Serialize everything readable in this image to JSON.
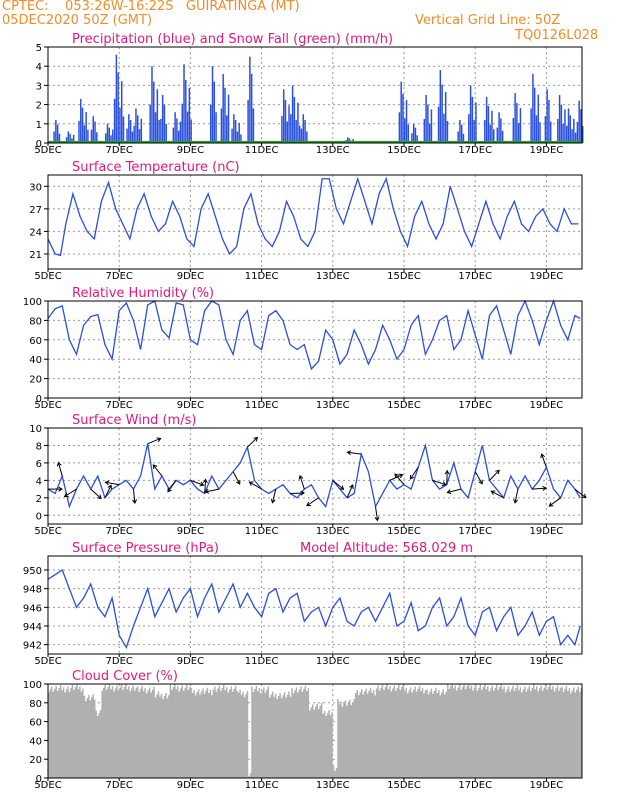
{
  "header": {
    "line1": "CPTEC:    053:26W-16:22S   GUIRATINGA (MT)",
    "line2_left": "05DEC2020 50Z (GMT)",
    "line2_right": "Vertical Grid Line: 50Z",
    "line3_right": "TQ0126L028"
  },
  "x_labels": [
    "5DEC",
    "7DEC",
    "9DEC",
    "11DEC",
    "13DEC",
    "15DEC",
    "17DEC",
    "19DEC"
  ],
  "colors": {
    "line": "#2a4fe0",
    "snow": "#18a818",
    "cloud": "#b0b0b0",
    "title": "#e0197d",
    "header": "#f28c28"
  },
  "chart_data": [
    {
      "type": "bar",
      "title": "Precipitation (blue) and Snow Fall (green) (mm/h)",
      "ylim": [
        0,
        5
      ],
      "yticks": [
        0,
        1,
        2,
        3,
        4,
        5
      ],
      "x_start_day": 5,
      "precip_events": [
        [
          5.15,
          1.2
        ],
        [
          5.5,
          0.6
        ],
        [
          5.85,
          2.3
        ],
        [
          6.2,
          1.4
        ],
        [
          6.6,
          1.0
        ],
        [
          6.85,
          4.6
        ],
        [
          7.2,
          1.5
        ],
        [
          7.4,
          1.8
        ],
        [
          7.85,
          4.0
        ],
        [
          8.15,
          2.5
        ],
        [
          8.5,
          1.6
        ],
        [
          8.75,
          4.1
        ],
        [
          9.55,
          4.0
        ],
        [
          9.85,
          3.6
        ],
        [
          10.15,
          1.5
        ],
        [
          10.6,
          4.5
        ],
        [
          11.55,
          2.8
        ],
        [
          11.8,
          3.0
        ],
        [
          12.1,
          1.5
        ],
        [
          13.35,
          0.3
        ],
        [
          14.85,
          3.2
        ],
        [
          15.2,
          1.0
        ],
        [
          15.55,
          2.5
        ],
        [
          15.95,
          3.8
        ],
        [
          16.5,
          1.2
        ],
        [
          16.8,
          3.0
        ],
        [
          17.25,
          2.4
        ],
        [
          17.6,
          1.6
        ],
        [
          18.05,
          2.6
        ],
        [
          18.55,
          3.6
        ],
        [
          18.95,
          2.8
        ],
        [
          19.3,
          2.5
        ],
        [
          19.55,
          1.8
        ],
        [
          19.85,
          2.2
        ]
      ],
      "snow": 0
    },
    {
      "type": "line",
      "title": "Surface Temperature (nC)",
      "ylim": [
        19,
        31.5
      ],
      "yticks": [
        21,
        24,
        27,
        30
      ],
      "x": [
        5.0,
        5.2,
        5.35,
        5.5,
        5.7,
        5.9,
        6.1,
        6.3,
        6.5,
        6.7,
        6.9,
        7.1,
        7.3,
        7.5,
        7.7,
        7.9,
        8.1,
        8.3,
        8.5,
        8.7,
        8.9,
        9.1,
        9.3,
        9.5,
        9.7,
        9.9,
        10.1,
        10.3,
        10.5,
        10.7,
        10.9,
        11.1,
        11.3,
        11.5,
        11.7,
        11.9,
        12.1,
        12.3,
        12.5,
        12.7,
        12.9,
        13.1,
        13.3,
        13.5,
        13.7,
        13.9,
        14.1,
        14.3,
        14.5,
        14.7,
        14.9,
        15.1,
        15.3,
        15.5,
        15.7,
        15.9,
        16.1,
        16.3,
        16.5,
        16.7,
        16.9,
        17.1,
        17.3,
        17.5,
        17.7,
        17.9,
        18.1,
        18.3,
        18.5,
        18.7,
        18.9,
        19.1,
        19.3,
        19.5,
        19.7,
        19.9
      ],
      "values": [
        23,
        21,
        20.8,
        25,
        29,
        26,
        24,
        23,
        28,
        30.5,
        27,
        25,
        23,
        27,
        29,
        26,
        24,
        25,
        28,
        26,
        23,
        22,
        27,
        29,
        26,
        23,
        21,
        22,
        27,
        29,
        25,
        23,
        22,
        24,
        28,
        26,
        23,
        22,
        24,
        31,
        31,
        27,
        25,
        28,
        31,
        28,
        25,
        29,
        31,
        27,
        24,
        22,
        26,
        28,
        25,
        23,
        25,
        30,
        27,
        24,
        22,
        25,
        28,
        25,
        23,
        26,
        28,
        25,
        24,
        26,
        27,
        25,
        24,
        27,
        25,
        25
      ]
    },
    {
      "type": "line",
      "title": "Relative Humidity (%)",
      "ylim": [
        0,
        100
      ],
      "yticks": [
        0,
        20,
        40,
        60,
        80,
        100
      ],
      "x": [
        5.0,
        5.2,
        5.4,
        5.6,
        5.8,
        6.0,
        6.2,
        6.4,
        6.6,
        6.8,
        7.0,
        7.2,
        7.4,
        7.6,
        7.8,
        8.0,
        8.2,
        8.4,
        8.6,
        8.8,
        9.0,
        9.2,
        9.4,
        9.6,
        9.8,
        10.0,
        10.2,
        10.4,
        10.6,
        10.8,
        11.0,
        11.2,
        11.4,
        11.6,
        11.8,
        12.0,
        12.2,
        12.4,
        12.6,
        12.8,
        13.0,
        13.2,
        13.4,
        13.6,
        13.8,
        14.0,
        14.2,
        14.4,
        14.6,
        14.8,
        15.0,
        15.2,
        15.4,
        15.6,
        15.8,
        16.0,
        16.2,
        16.4,
        16.6,
        16.8,
        17.0,
        17.2,
        17.4,
        17.6,
        17.8,
        18.0,
        18.2,
        18.4,
        18.6,
        18.8,
        19.0,
        19.2,
        19.4,
        19.6,
        19.8,
        19.95
      ],
      "values": [
        82,
        92,
        95,
        60,
        45,
        75,
        84,
        86,
        55,
        40,
        90,
        98,
        80,
        50,
        96,
        100,
        70,
        62,
        98,
        96,
        60,
        55,
        90,
        100,
        96,
        60,
        45,
        80,
        90,
        55,
        50,
        85,
        90,
        80,
        55,
        50,
        55,
        30,
        38,
        70,
        60,
        35,
        45,
        70,
        55,
        35,
        50,
        75,
        60,
        40,
        50,
        75,
        85,
        45,
        60,
        80,
        85,
        50,
        60,
        90,
        65,
        40,
        85,
        95,
        70,
        45,
        85,
        100,
        80,
        55,
        80,
        100,
        75,
        60,
        85,
        82
      ]
    },
    {
      "type": "line",
      "title": "Surface Wind (m/s)",
      "ylim": [
        -1,
        10
      ],
      "yticks": [
        0,
        2,
        4,
        6,
        8,
        10
      ],
      "x": [
        5.0,
        5.2,
        5.4,
        5.6,
        5.8,
        6.0,
        6.2,
        6.4,
        6.6,
        6.8,
        7.0,
        7.2,
        7.4,
        7.6,
        7.8,
        8.0,
        8.2,
        8.4,
        8.6,
        8.8,
        9.0,
        9.2,
        9.4,
        9.6,
        9.8,
        10.0,
        10.2,
        10.4,
        10.6,
        10.8,
        11.0,
        11.2,
        11.4,
        11.6,
        11.8,
        12.0,
        12.2,
        12.4,
        12.6,
        12.8,
        13.0,
        13.2,
        13.4,
        13.6,
        13.8,
        14.0,
        14.2,
        14.4,
        14.6,
        14.8,
        15.0,
        15.2,
        15.4,
        15.6,
        15.8,
        16.0,
        16.2,
        16.4,
        16.6,
        16.8,
        17.0,
        17.2,
        17.4,
        17.6,
        17.8,
        18.0,
        18.2,
        18.4,
        18.6,
        18.8,
        19.0,
        19.2,
        19.4,
        19.6,
        19.8,
        19.95
      ],
      "values": [
        3,
        2.5,
        4.5,
        1,
        3,
        4.5,
        3,
        4.5,
        2,
        3,
        3.5,
        4,
        3,
        4.5,
        8.2,
        3,
        4.5,
        3,
        4,
        3.5,
        4,
        3,
        2.5,
        4.5,
        3,
        4,
        5,
        6,
        7.8,
        4,
        3,
        2.5,
        3,
        3.5,
        2.5,
        2,
        3,
        3.5,
        2,
        1,
        4,
        3,
        2,
        2.5,
        7,
        5,
        1,
        2.5,
        4,
        3,
        3.5,
        3,
        5.5,
        8,
        4,
        3,
        3.5,
        6,
        3,
        2,
        5,
        8,
        4,
        3,
        2,
        4.5,
        3,
        4.5,
        3,
        4,
        5.5,
        3,
        2,
        4,
        3,
        2
      ]
    },
    {
      "type": "line",
      "title": "Surface Pressure (hPa)",
      "annotation": "Model Altitude: 568.029 m",
      "ylim": [
        941,
        951.5
      ],
      "yticks": [
        942,
        944,
        946,
        948,
        950
      ],
      "x": [
        5.0,
        5.2,
        5.4,
        5.6,
        5.8,
        6.0,
        6.2,
        6.4,
        6.6,
        6.8,
        7.0,
        7.2,
        7.4,
        7.6,
        7.8,
        8.0,
        8.2,
        8.4,
        8.6,
        8.8,
        9.0,
        9.2,
        9.4,
        9.6,
        9.8,
        10.0,
        10.2,
        10.4,
        10.6,
        10.8,
        11.0,
        11.2,
        11.4,
        11.6,
        11.8,
        12.0,
        12.2,
        12.4,
        12.6,
        12.8,
        13.0,
        13.2,
        13.4,
        13.6,
        13.8,
        14.0,
        14.2,
        14.4,
        14.6,
        14.8,
        15.0,
        15.2,
        15.4,
        15.6,
        15.8,
        16.0,
        16.2,
        16.4,
        16.6,
        16.8,
        17.0,
        17.2,
        17.4,
        17.6,
        17.8,
        18.0,
        18.2,
        18.4,
        18.6,
        18.8,
        19.0,
        19.2,
        19.4,
        19.6,
        19.8,
        19.95
      ],
      "values": [
        949,
        949.5,
        950,
        948,
        946,
        947,
        948.5,
        946,
        945,
        947,
        943,
        941.7,
        944,
        946,
        948,
        945,
        946.5,
        948,
        945.5,
        947,
        948,
        945,
        947,
        948.5,
        945.5,
        947,
        948.5,
        946,
        947.5,
        946,
        945,
        947.5,
        948,
        945.5,
        947,
        947.5,
        944.5,
        945.5,
        946,
        944,
        946,
        947,
        944.5,
        944,
        945.5,
        946,
        944.5,
        946,
        947.5,
        944,
        944.5,
        946.5,
        943.5,
        944,
        946,
        947,
        944,
        945,
        947,
        944,
        943,
        945.5,
        946,
        943.5,
        945,
        946,
        943,
        944,
        945.5,
        943,
        944.5,
        945,
        942,
        943,
        942,
        944
      ]
    },
    {
      "type": "bar",
      "title": "Cloud Cover (%)",
      "ylim": [
        0,
        100
      ],
      "yticks": [
        0,
        20,
        40,
        60,
        80,
        100
      ],
      "x_start_day": 5,
      "bins_per_day": 24,
      "cloud_profile": [
        [
          5.0,
          95
        ],
        [
          5.6,
          96
        ],
        [
          6.0,
          85
        ],
        [
          6.3,
          70
        ],
        [
          6.5,
          96
        ],
        [
          7.5,
          94
        ],
        [
          8.0,
          88
        ],
        [
          8.4,
          96
        ],
        [
          9.0,
          92
        ],
        [
          9.6,
          95
        ],
        [
          10.3,
          90
        ],
        [
          10.6,
          5
        ],
        [
          10.7,
          94
        ],
        [
          11.2,
          88
        ],
        [
          11.8,
          94
        ],
        [
          12.3,
          76
        ],
        [
          12.7,
          70
        ],
        [
          13.0,
          10
        ],
        [
          13.1,
          80
        ],
        [
          13.6,
          92
        ],
        [
          14.2,
          96
        ],
        [
          15.0,
          94
        ],
        [
          15.6,
          92
        ],
        [
          16.2,
          97
        ],
        [
          17.0,
          96
        ],
        [
          17.8,
          95
        ],
        [
          18.6,
          96
        ],
        [
          19.4,
          94
        ],
        [
          19.95,
          95
        ]
      ]
    }
  ]
}
